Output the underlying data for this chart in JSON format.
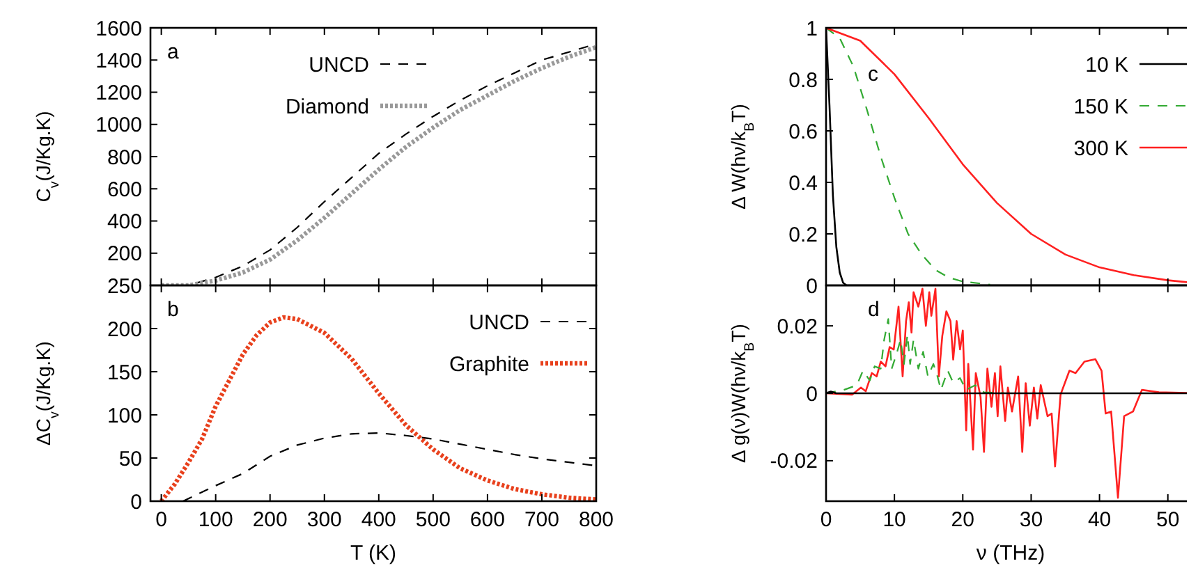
{
  "chart_data": [
    {
      "type": "line",
      "ylabel": "C$_{v}$(J/Kg.K)",
      "xlim": [
        -20,
        800
      ],
      "xticks": [
        0,
        100,
        200,
        300,
        400,
        500,
        600,
        700,
        800
      ],
      "ylim": [
        0,
        1600
      ],
      "yticks": [
        200,
        400,
        600,
        800,
        1000,
        1200,
        1400,
        1600
      ],
      "tick_labels": "y",
      "legend": "top",
      "annotations": [
        "a"
      ],
      "x": [
        0,
        50,
        100,
        150,
        200,
        250,
        300,
        350,
        400,
        450,
        500,
        550,
        600,
        650,
        700,
        750,
        800
      ],
      "series": [
        {
          "name": "UNCD",
          "color": "#000000",
          "line_style": "dashed",
          "values": [
            0,
            0,
            50,
            120,
            220,
            360,
            520,
            670,
            820,
            940,
            1050,
            1150,
            1240,
            1320,
            1400,
            1450,
            1500
          ]
        },
        {
          "name": "Diamond",
          "color": "#999999",
          "line_style": "dotted",
          "values": [
            0,
            0,
            30,
            80,
            160,
            280,
            420,
            570,
            720,
            860,
            980,
            1090,
            1180,
            1270,
            1350,
            1420,
            1480
          ]
        }
      ]
    },
    {
      "type": "line",
      "xlabel": "T (K)",
      "ylabel": "ΔC$_{v}$(J/Kg.K)",
      "xlim": [
        -20,
        800
      ],
      "xticks": [
        0,
        100,
        200,
        300,
        400,
        500,
        600,
        700,
        800
      ],
      "ylim": [
        0,
        250
      ],
      "yticks": [
        0,
        50,
        100,
        150,
        200,
        250
      ],
      "legend": "top right",
      "annotations": [
        "b"
      ],
      "series": [
        {
          "name": "UNCD",
          "color": "#000000",
          "line_style": "dashed",
          "x": [
            40,
            50,
            100,
            150,
            200,
            250,
            300,
            350,
            400,
            450,
            500,
            550,
            600,
            650,
            700,
            750,
            800
          ],
          "values": [
            0,
            3,
            18,
            32,
            52,
            65,
            73,
            78,
            79,
            76,
            72,
            66,
            60,
            54,
            49,
            45,
            41
          ]
        },
        {
          "name": "Graphite",
          "color": "#e8401c",
          "line_style": "dotted",
          "x": [
            0,
            25,
            50,
            75,
            100,
            125,
            150,
            175,
            200,
            225,
            250,
            300,
            350,
            400,
            450,
            500,
            550,
            600,
            650,
            700,
            750,
            800
          ],
          "values": [
            0,
            20,
            45,
            72,
            110,
            140,
            170,
            192,
            207,
            213,
            211,
            195,
            165,
            125,
            88,
            60,
            38,
            24,
            14,
            8,
            4,
            2
          ]
        }
      ]
    },
    {
      "type": "line",
      "ylabel": "Δ W(hν/k$_{B}$T)",
      "xlim": [
        0,
        54
      ],
      "xticks": [
        0,
        10,
        20,
        30,
        40,
        50
      ],
      "ylim": [
        0,
        1
      ],
      "yticks": [
        0,
        0.2,
        0.4,
        0.6,
        0.8,
        1
      ],
      "tick_labels": "y",
      "legend": "top right",
      "annotations": [
        "c"
      ],
      "series": [
        {
          "name": "10 K",
          "color": "#000000",
          "line_style": "solid",
          "x": [
            0,
            0.5,
            1,
            1.5,
            2,
            2.5,
            3,
            54
          ],
          "values": [
            1,
            0.7,
            0.35,
            0.15,
            0.05,
            0.01,
            0,
            0
          ]
        },
        {
          "name": "150 K",
          "color": "#33aa33",
          "line_style": "dashed",
          "x": [
            0,
            2,
            4,
            6,
            8,
            10,
            12,
            14,
            16,
            18,
            20,
            24
          ],
          "values": [
            1,
            0.96,
            0.85,
            0.68,
            0.5,
            0.34,
            0.2,
            0.12,
            0.06,
            0.03,
            0.015,
            0.003
          ]
        },
        {
          "name": "300 K",
          "color": "#ff2020",
          "line_style": "solid",
          "x": [
            0,
            5,
            10,
            15,
            20,
            25,
            30,
            35,
            40,
            45,
            50,
            53
          ],
          "values": [
            1,
            0.95,
            0.82,
            0.65,
            0.47,
            0.32,
            0.2,
            0.12,
            0.07,
            0.04,
            0.02,
            0.012
          ]
        }
      ]
    },
    {
      "type": "line",
      "xlabel": "ν (THz)",
      "ylabel": "Δ g(ν)W(hν/k$_{B}$T)",
      "xlim": [
        0,
        54
      ],
      "xticks": [
        0,
        10,
        20,
        30,
        40,
        50
      ],
      "ylim": [
        -0.032,
        0.032
      ],
      "yticks": [
        -0.02,
        0,
        0.02
      ],
      "legend": false,
      "annotations": [
        "d"
      ],
      "series": [
        {
          "color": "#ff2020",
          "line_style": "solid",
          "x": [
            0,
            3.8,
            5.1,
            5.8,
            6.7,
            7.4,
            8.0,
            8.7,
            9.3,
            9.9,
            10.6,
            11.2,
            11.7,
            12.1,
            12.5,
            12.8,
            13.5,
            14.1,
            14.6,
            15.1,
            15.4,
            16.0,
            16.5,
            17.0,
            17.6,
            18.2,
            18.6,
            19.1,
            19.6,
            20.0,
            20.5,
            20.8,
            21.5,
            21.9,
            22.6,
            23.1,
            23.6,
            24.2,
            24.7,
            25.1,
            25.5,
            26.2,
            26.6,
            27.2,
            28.1,
            28.7,
            29.2,
            29.8,
            30.4,
            30.9,
            31.4,
            32.4,
            33.0,
            33.5,
            34.3,
            35.6,
            36.5,
            37.8,
            39.4,
            40.3,
            40.9,
            41.7,
            42.7,
            43.6,
            44.9,
            46.2,
            48.7,
            54
          ],
          "values": [
            0,
            -0.0004,
            0.0017,
            0.0006,
            0.006,
            0.005,
            0.0094,
            0.008,
            0.0137,
            0.013,
            0.0257,
            0.005,
            0.0214,
            0.027,
            0.018,
            0.03,
            0.0257,
            0.031,
            0.02,
            0.03,
            0.023,
            0.031,
            0.005,
            0.017,
            0.0243,
            0.0214,
            0.01,
            0.0214,
            0.013,
            0.0186,
            -0.011,
            0.0087,
            -0.0167,
            0.006,
            -0.0011,
            -0.0174,
            0.0073,
            -0.004,
            0.006,
            -0.0068,
            0.008,
            -0.0082,
            0.0017,
            -0.0054,
            0.005,
            -0.0174,
            0.003,
            -0.0096,
            0.0017,
            -0.0075,
            0.0024,
            -0.0068,
            -0.006,
            -0.0217,
            -0.0004,
            0.0067,
            0.006,
            0.0094,
            0.0101,
            0.0067,
            -0.006,
            -0.0054,
            -0.031,
            -0.0068,
            -0.0054,
            0.001,
            0.0003,
            0
          ]
        },
        {
          "color": "#33aa33",
          "line_style": "dashed",
          "x": [
            0,
            2.6,
            4.5,
            5.4,
            6.4,
            7.1,
            8.0,
            8.5,
            9.1,
            9.6,
            10.3,
            10.9,
            11.4,
            11.9,
            12.3,
            12.8,
            13.5,
            14.2,
            14.9,
            15.7,
            16.3,
            16.8,
            17.8,
            18.6,
            19.6,
            20.5,
            21.8,
            23.1,
            26.3,
            54
          ],
          "values": [
            0,
            0.001,
            0.0024,
            0.0067,
            0.0038,
            0.008,
            0.0073,
            0.0159,
            0.022,
            0.0073,
            0.0116,
            0.0159,
            0.0087,
            0.0173,
            0.0087,
            0.0159,
            0.0073,
            0.0123,
            0.005,
            0.0087,
            0.005,
            0.001,
            0.0067,
            0.0031,
            0.0045,
            0.001,
            0.0024,
            0.0003,
            0,
            0
          ]
        },
        {
          "color": "#000000",
          "line_style": "solid",
          "x": [
            0,
            0.7,
            1.5,
            54
          ],
          "values": [
            0,
            0.0005,
            0,
            0
          ]
        }
      ]
    }
  ]
}
